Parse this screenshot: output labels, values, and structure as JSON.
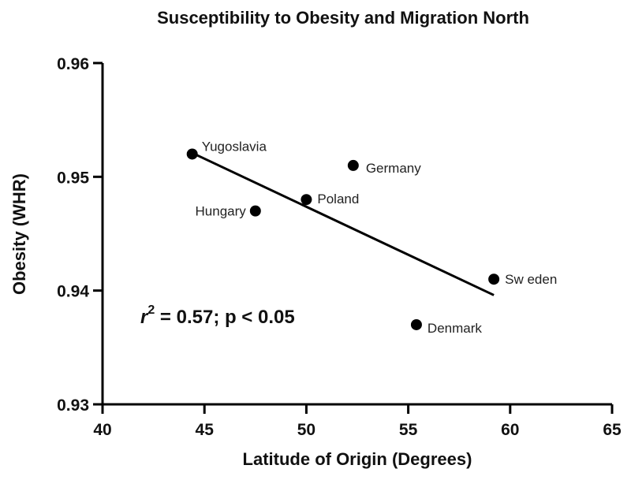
{
  "chart_data": {
    "type": "scatter",
    "title": "Susceptibility to Obesity and Migration North",
    "xlabel": "Latitude of Origin (Degrees)",
    "ylabel": "Obesity (WHR)",
    "xlim": [
      40,
      65
    ],
    "ylim": [
      0.93,
      0.96
    ],
    "xticks": [
      "40",
      "45",
      "50",
      "55",
      "60",
      "65"
    ],
    "yticks": [
      "0.93",
      "0.94",
      "0.95",
      "0.96"
    ],
    "points": [
      {
        "label": "Yugoslavia",
        "x": 44.4,
        "y": 0.952
      },
      {
        "label": "Germany",
        "x": 52.3,
        "y": 0.951
      },
      {
        "label": "Poland",
        "x": 50.0,
        "y": 0.948
      },
      {
        "label": "Hungary",
        "x": 47.5,
        "y": 0.947
      },
      {
        "label": "Sw eden",
        "x": 59.2,
        "y": 0.941
      },
      {
        "label": "Denmark",
        "x": 55.4,
        "y": 0.937
      }
    ],
    "trendline": {
      "x": [
        44.4,
        59.2
      ],
      "y": [
        0.9521,
        0.9396
      ]
    },
    "annotation": {
      "prefix": "r",
      "superscript": "2",
      "rest": " = 0.57; p < 0.05"
    },
    "grid": false
  }
}
